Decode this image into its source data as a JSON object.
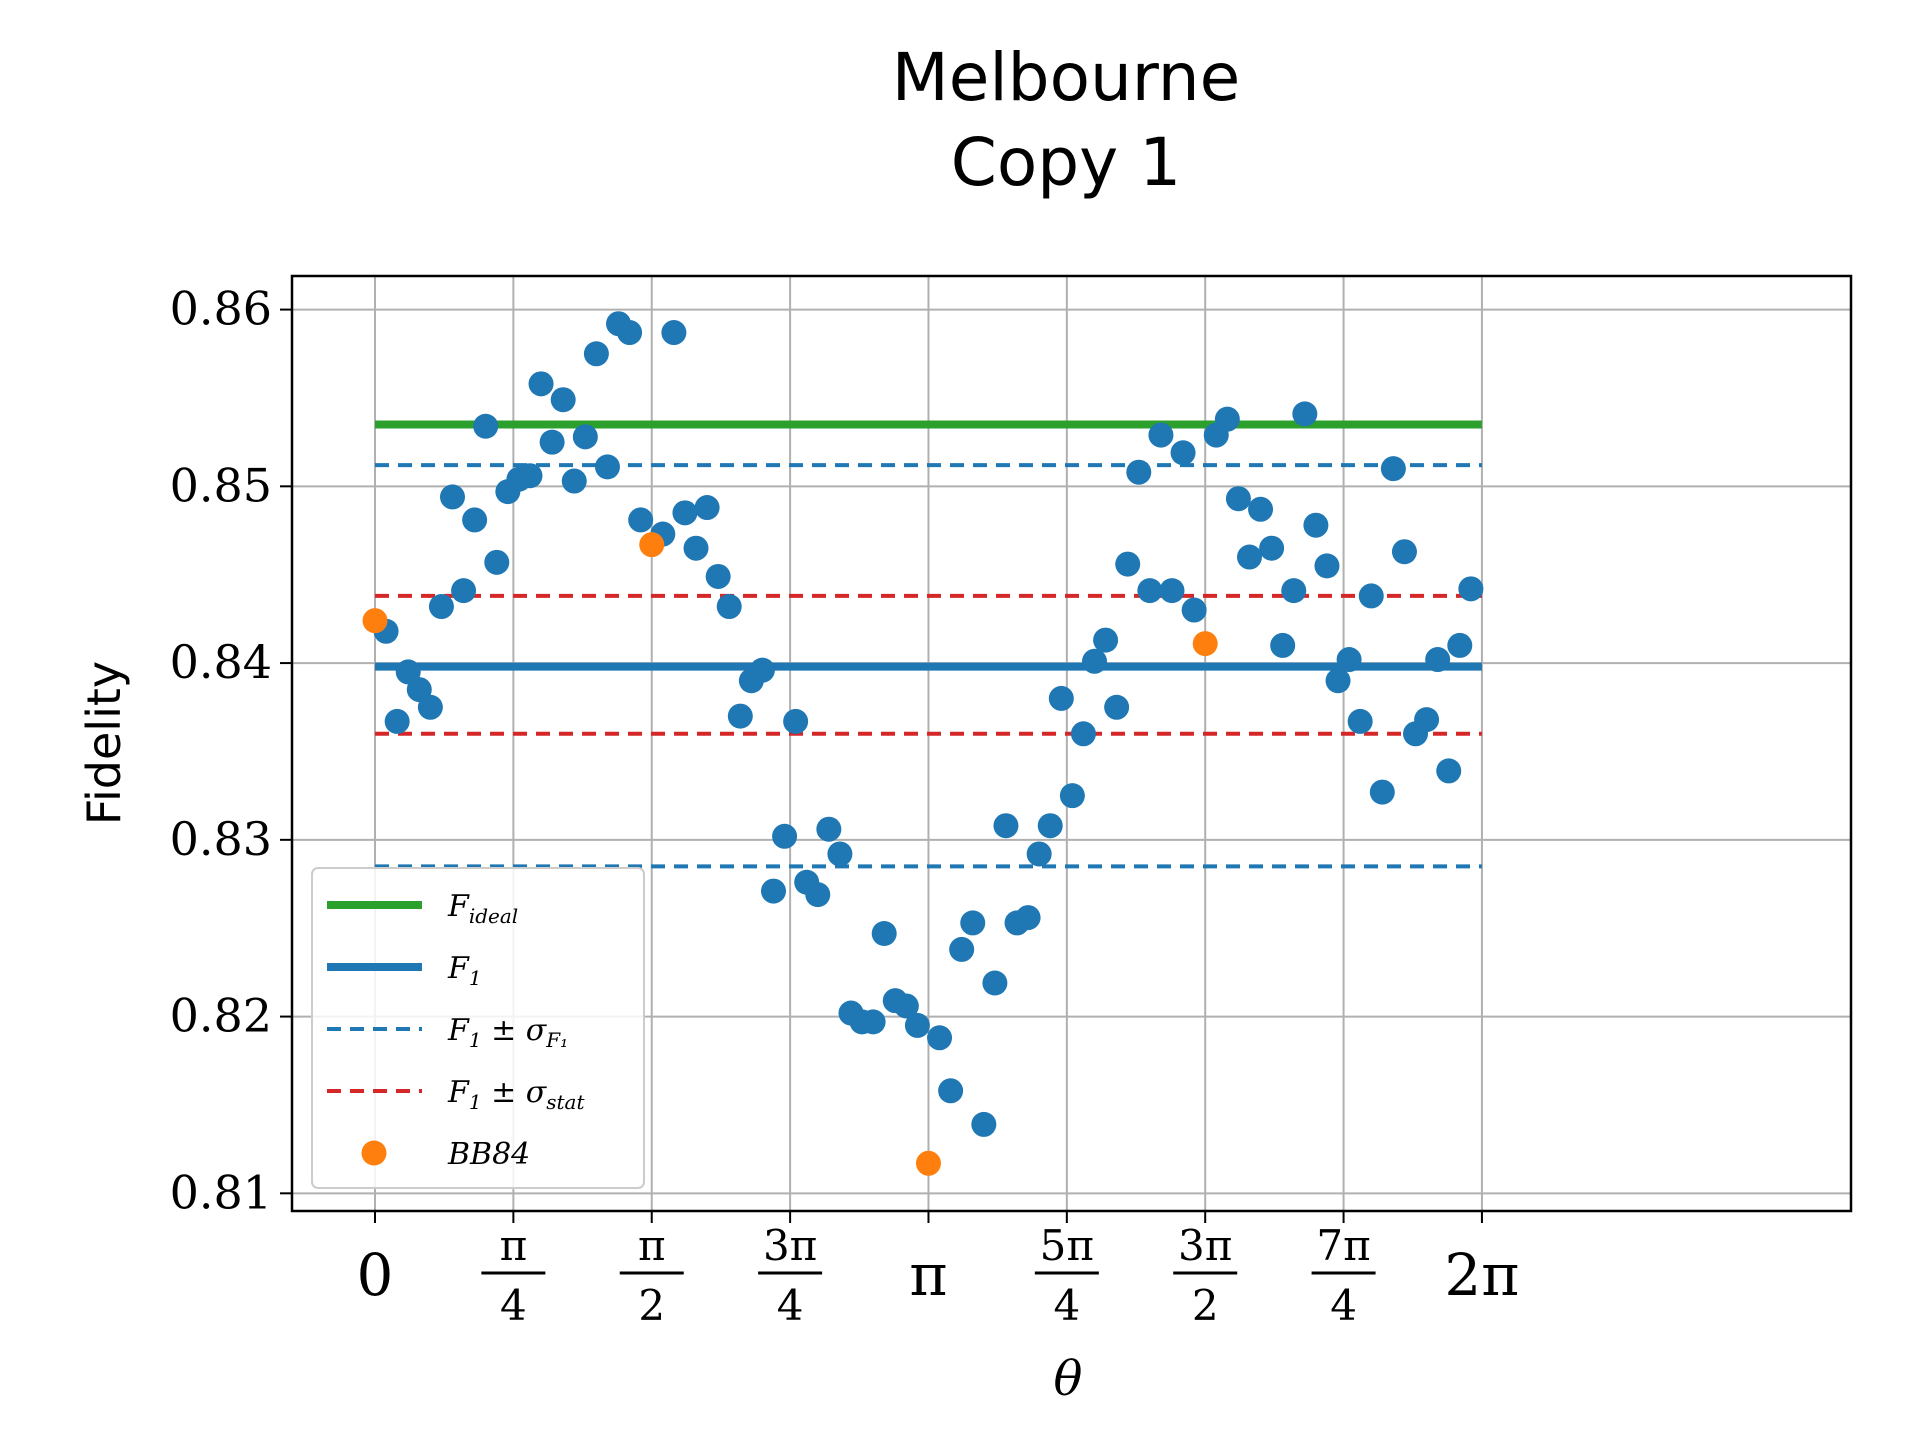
{
  "chart_data": {
    "type": "scatter",
    "title": [
      "Melbourne",
      "Copy 1"
    ],
    "xlabel": "θ",
    "ylabel": "Fidelity",
    "ylim": [
      0.809,
      0.8619
    ],
    "xlim": [
      -0.4712,
      8.3781
    ],
    "grid": true,
    "legend_position": "lower-left",
    "x_ticks": [
      {
        "value": 0,
        "num": "0",
        "den": ""
      },
      {
        "value": 0.7854,
        "num": "π",
        "den": "4"
      },
      {
        "value": 1.5708,
        "num": "π",
        "den": "2"
      },
      {
        "value": 2.3562,
        "num": "3π",
        "den": "4"
      },
      {
        "value": 3.1416,
        "num": "π",
        "den": ""
      },
      {
        "value": 3.927,
        "num": "5π",
        "den": "4"
      },
      {
        "value": 4.7124,
        "num": "3π",
        "den": "2"
      },
      {
        "value": 5.4978,
        "num": "7π",
        "den": "4"
      },
      {
        "value": 6.2832,
        "num": "2π",
        "den": ""
      }
    ],
    "y_ticks": [
      {
        "value": 0.81,
        "label": "0.81"
      },
      {
        "value": 0.82,
        "label": "0.82"
      },
      {
        "value": 0.83,
        "label": "0.83"
      },
      {
        "value": 0.84,
        "label": "0.84"
      },
      {
        "value": 0.85,
        "label": "0.85"
      },
      {
        "value": 0.86,
        "label": "0.86"
      }
    ],
    "hlines": [
      {
        "name": "F_ideal",
        "y": 0.8535,
        "x_range": [
          0,
          6.2832
        ],
        "color": "#2ca02c",
        "style": "solid",
        "width": 8
      },
      {
        "name": "F_1",
        "y": 0.8398,
        "x_range": [
          0,
          6.2832
        ],
        "color": "#1f77b4",
        "style": "solid",
        "width": 8
      },
      {
        "name": "F_1 ± σ_F1",
        "y": 0.8512,
        "x_range": [
          0,
          6.2832
        ],
        "color": "#1f77b4",
        "style": "dashed",
        "width": 4
      },
      {
        "name": "F_1 ± σ_F1",
        "y": 0.8285,
        "x_range": [
          0,
          6.2832
        ],
        "color": "#1f77b4",
        "style": "dashed",
        "width": 4
      },
      {
        "name": "F_1 ± σ_stat",
        "y": 0.8438,
        "x_range": [
          0,
          6.2832
        ],
        "color": "#d62728",
        "style": "dashed",
        "width": 4
      },
      {
        "name": "F_1 ± σ_stat",
        "y": 0.836,
        "x_range": [
          0,
          6.2832
        ],
        "color": "#d62728",
        "style": "dashed",
        "width": 4
      }
    ],
    "series": [
      {
        "name": "data",
        "color": "#1f77b4",
        "x": [
          0.0628,
          0.1257,
          0.1885,
          0.2513,
          0.3142,
          0.377,
          0.4398,
          0.5027,
          0.5655,
          0.6283,
          0.6912,
          0.754,
          0.8168,
          0.8796,
          0.9425,
          1.0053,
          1.0681,
          1.131,
          1.1938,
          1.2566,
          1.3195,
          1.3823,
          1.4451,
          1.508,
          1.6336,
          1.6965,
          1.7593,
          1.8221,
          1.885,
          1.9478,
          2.0106,
          2.0735,
          2.1363,
          2.1991,
          2.2619,
          2.3248,
          2.3876,
          2.4504,
          2.5133,
          2.5761,
          2.6389,
          2.7018,
          2.7646,
          2.8274,
          2.8903,
          2.9531,
          3.0159,
          3.0788,
          3.2044,
          3.2673,
          3.3301,
          3.3929,
          3.4558,
          3.5186,
          3.5814,
          3.6442,
          3.7071,
          3.7699,
          3.8327,
          3.8956,
          3.9584,
          4.0212,
          4.0841,
          4.1469,
          4.2097,
          4.2726,
          4.3354,
          4.3982,
          4.4611,
          4.5239,
          4.5867,
          4.6496,
          4.7752,
          4.8381,
          4.9009,
          4.9637,
          5.0265,
          5.0894,
          5.1522,
          5.215,
          5.2779,
          5.3407,
          5.4035,
          5.4664,
          5.5292,
          5.592,
          5.6549,
          5.7177,
          5.7805,
          5.8434,
          5.9062,
          5.969,
          6.0319,
          6.0947,
          6.1575,
          6.2204
        ],
        "y": [
          0.8418,
          0.8367,
          0.8395,
          0.8385,
          0.8375,
          0.8432,
          0.8494,
          0.8441,
          0.8481,
          0.8534,
          0.8457,
          0.8497,
          0.8504,
          0.8506,
          0.8558,
          0.8525,
          0.8549,
          0.8503,
          0.8528,
          0.8575,
          0.8511,
          0.8592,
          0.8587,
          0.8481,
          0.8473,
          0.8587,
          0.8485,
          0.8465,
          0.8488,
          0.8449,
          0.8432,
          0.837,
          0.839,
          0.8396,
          0.8271,
          0.8302,
          0.8367,
          0.8276,
          0.8269,
          0.8306,
          0.8292,
          0.8202,
          0.8197,
          0.8197,
          0.8247,
          0.8209,
          0.8206,
          0.8195,
          0.8188,
          0.8158,
          0.8238,
          0.8253,
          0.8139,
          0.8219,
          0.8308,
          0.8253,
          0.8256,
          0.8292,
          0.8308,
          0.838,
          0.8325,
          0.836,
          0.8401,
          0.8413,
          0.8375,
          0.8456,
          0.8508,
          0.8441,
          0.8529,
          0.8441,
          0.8519,
          0.843,
          0.8529,
          0.8538,
          0.8493,
          0.846,
          0.8487,
          0.8465,
          0.841,
          0.8441,
          0.8541,
          0.8478,
          0.8455,
          0.839,
          0.8402,
          0.8367,
          0.8438,
          0.8327,
          0.851,
          0.8463,
          0.836,
          0.8368,
          0.8402,
          0.8339,
          0.841,
          0.8442
        ]
      },
      {
        "name": "BB84",
        "color": "#ff7f0e",
        "x": [
          0,
          1.5708,
          3.1416,
          4.7124
        ],
        "y": [
          0.8424,
          0.8467,
          0.8117,
          0.8411
        ]
      }
    ],
    "legend": [
      {
        "kind": "line",
        "color": "#2ca02c",
        "style": "solid",
        "base": "F",
        "sub": "ideal",
        "tail": ""
      },
      {
        "kind": "line",
        "color": "#1f77b4",
        "style": "solid",
        "base": "F",
        "sub": "1",
        "tail": ""
      },
      {
        "kind": "line",
        "color": "#1f77b4",
        "style": "dashed",
        "base": "F",
        "sub": "1",
        "tail": " ± σ",
        "tail_sub": "F₁"
      },
      {
        "kind": "line",
        "color": "#d62728",
        "style": "dashed",
        "base": "F",
        "sub": "1",
        "tail": " ± σ",
        "tail_sub": "stat"
      },
      {
        "kind": "marker",
        "color": "#ff7f0e",
        "base": "BB84",
        "sub": "",
        "tail": ""
      }
    ]
  }
}
